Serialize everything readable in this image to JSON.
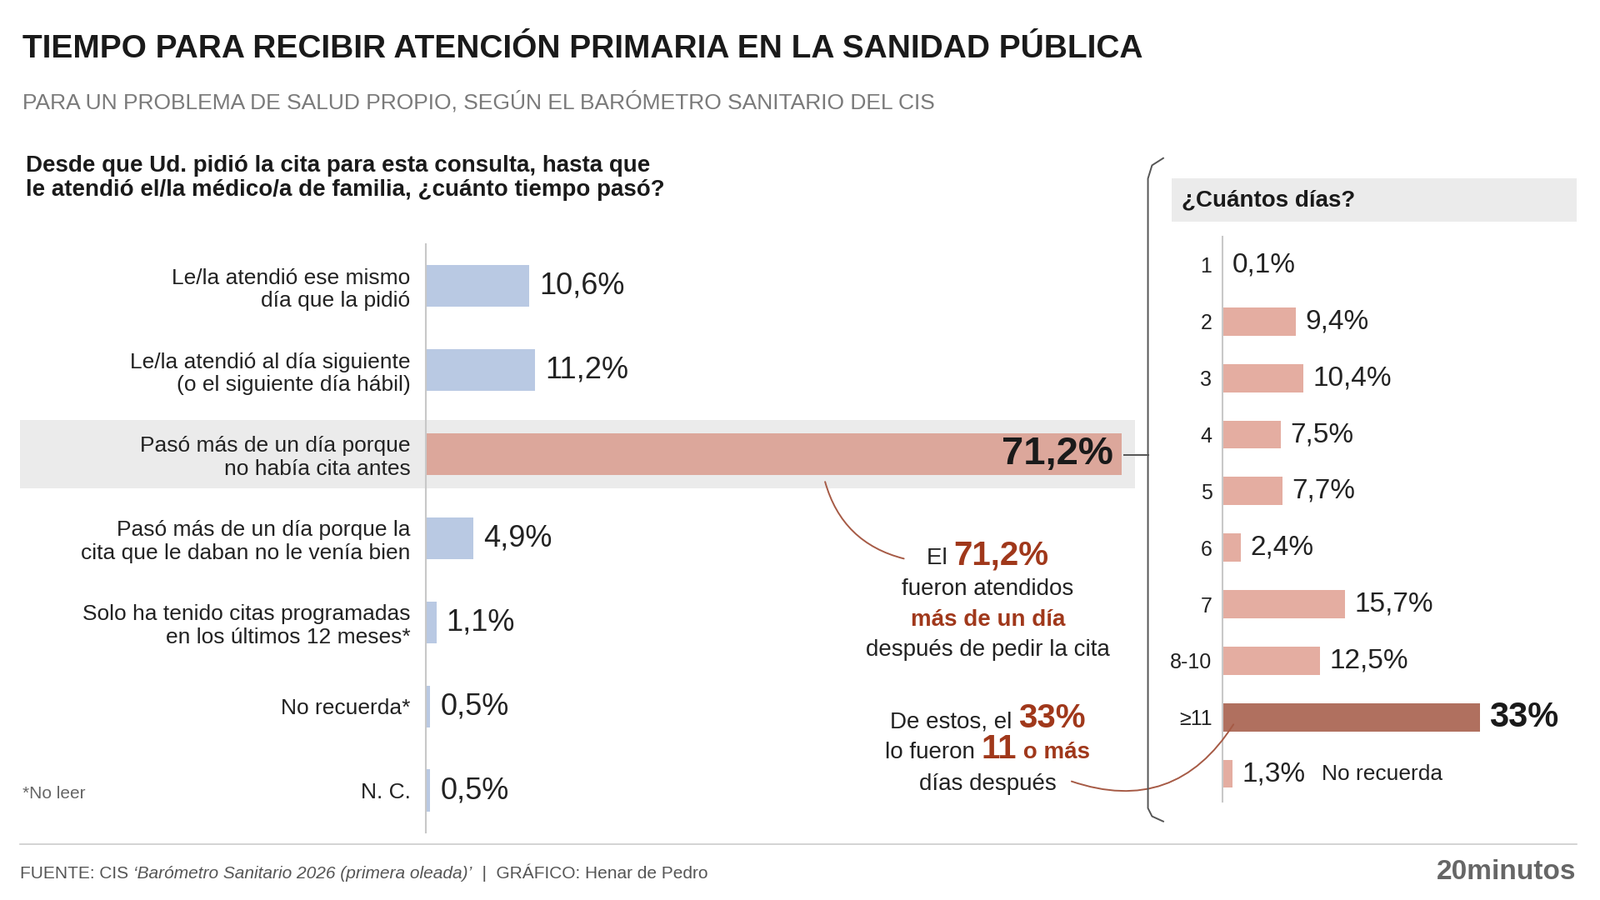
{
  "title": "TIEMPO PARA RECIBIR ATENCIÓN PRIMARIA EN LA SANIDAD PÚBLICA",
  "subtitle": "PARA UN PROBLEMA DE SALUD PROPIO, SEGÚN EL BARÓMETRO SANITARIO DEL CIS",
  "chart_data": [
    {
      "type": "bar",
      "orientation": "horizontal",
      "title": "Desde que Ud. pidió la cita para esta consulta, hasta que\nle atendió el/la médico/a de familia, ¿cuánto tiempo pasó?",
      "categories": [
        "Le/la atendió ese mismo\ndía que la pidió",
        "Le/la atendió al día siguiente\n(o el siguiente día hábil)",
        "Pasó más de un día porque\nno había cita antes",
        "Pasó más de un día porque la\ncita que le daban no le venía bien",
        "Solo ha tenido citas programadas\nen los últimos 12 meses*",
        "No recuerda*",
        "N. C."
      ],
      "values": [
        10.6,
        11.2,
        71.2,
        4.9,
        1.1,
        0.5,
        0.5
      ],
      "value_labels": [
        "10,6%",
        "11,2%",
        "71,2%",
        "4,9%",
        "1,1%",
        "0,5%",
        "0,5%"
      ],
      "colors": [
        "#b9c9e3",
        "#b9c9e3",
        "#dca79b",
        "#b9c9e3",
        "#b9c9e3",
        "#b9c9e3",
        "#b9c9e3"
      ],
      "xlim": [
        0,
        72
      ],
      "data_labels": true,
      "tick_labels": "y",
      "grid": false,
      "footnote": "*No leer"
    },
    {
      "type": "bar",
      "orientation": "horizontal",
      "title": "¿Cuántos días?",
      "categories": [
        "1",
        "2",
        "3",
        "4",
        "5",
        "6",
        "7",
        "8-10",
        "≥11",
        null
      ],
      "values": [
        0.1,
        9.4,
        10.4,
        7.5,
        7.7,
        2.4,
        15.7,
        12.5,
        33,
        1.3
      ],
      "value_labels": [
        "0,1%",
        "9,4%",
        "10,4%",
        "7,5%",
        "7,7%",
        "2,4%",
        "15,7%",
        "12,5%",
        "33%",
        "1,3%"
      ],
      "colors": [
        "#e4ada1",
        "#e4ada1",
        "#e4ada1",
        "#e4ada1",
        "#e4ada1",
        "#e4ada1",
        "#e4ada1",
        "#e4ada1",
        "#b0705f",
        "#e4ada1"
      ],
      "xlim": [
        0,
        34
      ],
      "data_labels": true,
      "tick_labels": "y",
      "grid": false,
      "annotations": [
        "No recuerda"
      ]
    }
  ],
  "annotations": [
    [
      [
        {
          "text": "El ",
          "style": "plain"
        },
        {
          "text": "71,2%",
          "style": "number"
        }
      ],
      [
        {
          "text": "fueron atendidos",
          "style": "plain"
        }
      ],
      [
        {
          "text": "más de un día",
          "style": "highlight"
        }
      ],
      [
        {
          "text": "después de pedir la cita",
          "style": "plain"
        }
      ]
    ],
    [
      [
        {
          "text": "De estos, el ",
          "style": "plain"
        },
        {
          "text": "33%",
          "style": "number"
        }
      ],
      [
        {
          "text": "lo fueron ",
          "style": "plain"
        },
        {
          "text": "11",
          "style": "number"
        },
        {
          "text": " o más",
          "style": "highlight"
        }
      ],
      [
        {
          "text": "días después",
          "style": "plain"
        }
      ]
    ]
  ],
  "source": [
    {
      "text": "FUENTE: CIS ",
      "style": "plain"
    },
    {
      "text": "‘Barómetro Sanitario 2026 (primera oleada)’",
      "style": "italic"
    },
    {
      "text": "  |  GRÁFICO: Henar de Pedro",
      "style": "plain"
    }
  ],
  "brand": "20minutos"
}
